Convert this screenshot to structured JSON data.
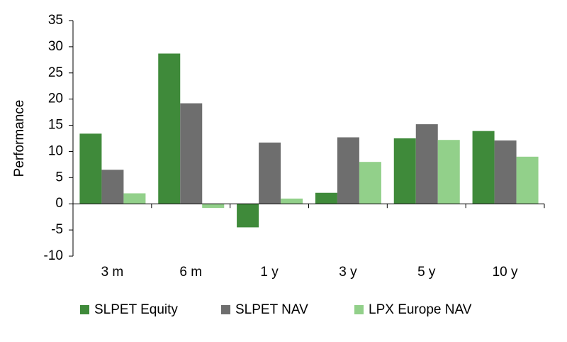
{
  "chart_data": {
    "type": "bar",
    "y_label": "Performance",
    "categories": [
      "3 m",
      "6 m",
      "1 y",
      "3 y",
      "5 y",
      "10 y"
    ],
    "series": [
      {
        "name": "SLPET Equity",
        "color": "#3f8a3a",
        "values": [
          13.4,
          28.7,
          -4.5,
          2.1,
          12.5,
          13.9
        ]
      },
      {
        "name": "SLPET NAV",
        "color": "#6e6e6e",
        "values": [
          6.5,
          19.2,
          11.7,
          12.7,
          15.2,
          12.1
        ]
      },
      {
        "name": "LPX Europe NAV",
        "color": "#92d08a",
        "values": [
          2.0,
          -0.8,
          1.0,
          8.0,
          12.2,
          9.0
        ]
      }
    ],
    "ylim": [
      -10,
      35
    ],
    "yticks": [
      -10,
      -5,
      0,
      5,
      10,
      15,
      20,
      25,
      30,
      35
    ],
    "grid": false,
    "legend": "bottom"
  }
}
